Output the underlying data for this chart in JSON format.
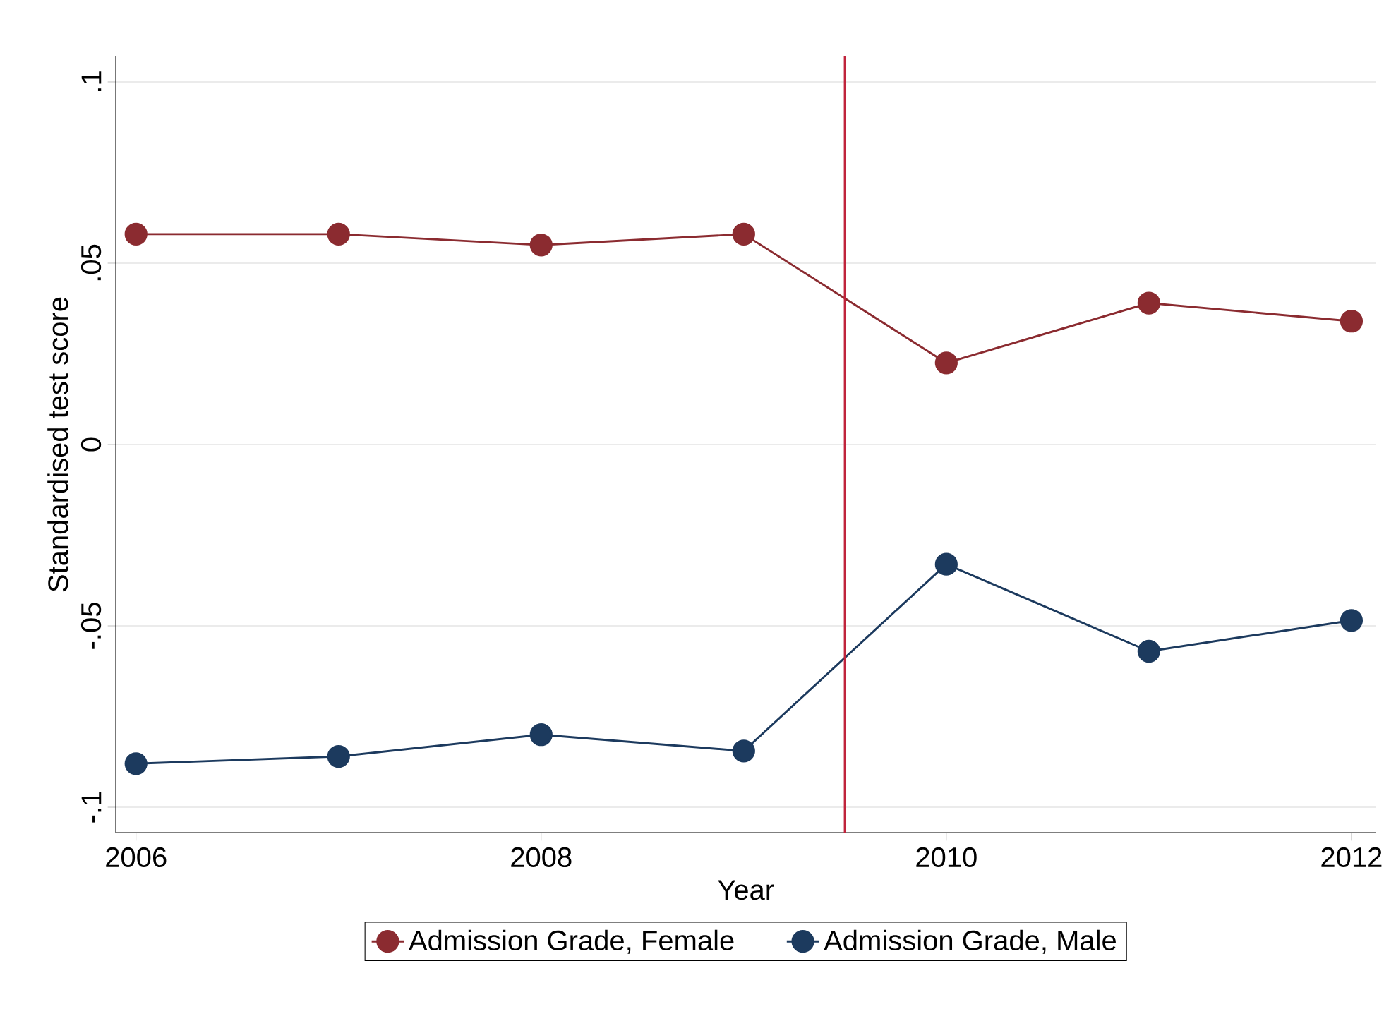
{
  "chart_data": {
    "type": "line",
    "xlabel": "Year",
    "ylabel": "Standardised test score",
    "x": [
      2006,
      2007,
      2008,
      2009,
      2010,
      2011,
      2012
    ],
    "series": [
      {
        "name": "Admission Grade, Female",
        "color": "#8b2b30",
        "values": [
          0.058,
          0.058,
          0.055,
          0.058,
          0.0225,
          0.039,
          0.034
        ]
      },
      {
        "name": "Admission Grade, Male",
        "color": "#1c3a5e",
        "values": [
          -0.088,
          -0.086,
          -0.08,
          -0.0845,
          -0.033,
          -0.057,
          -0.0485
        ]
      }
    ],
    "xlim": [
      2005.9,
      2012.12
    ],
    "ylim": [
      -0.107,
      0.107
    ],
    "xticks": [
      2006,
      2008,
      2010,
      2012
    ],
    "yticks": [
      {
        "value": -0.1,
        "label": "-.1"
      },
      {
        "value": -0.05,
        "label": "-.05"
      },
      0,
      {
        "value": 0.05,
        "label": ".05"
      },
      {
        "value": 0.1,
        "label": ".1"
      }
    ],
    "ref_lines": [
      {
        "axis": "x",
        "value": 2009.5,
        "color": "#c0243c"
      }
    ],
    "grid": "y",
    "legend": "bottom",
    "marker": "circle",
    "line_style": "solid"
  }
}
